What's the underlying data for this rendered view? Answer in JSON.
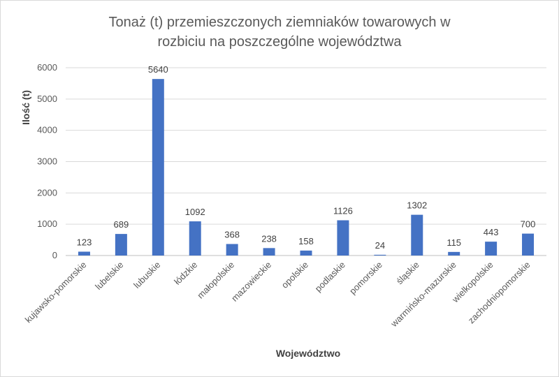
{
  "chart_data": {
    "type": "bar",
    "title_lines": [
      "Tonaż (t) przemieszczonych ziemniaków towarowych w",
      "rozbiciu na poszczególne województwa"
    ],
    "xlabel": "Województwo",
    "ylabel": "Ilość (t)",
    "ylim": [
      0,
      6000
    ],
    "yticks": [
      0,
      1000,
      2000,
      3000,
      4000,
      5000,
      6000
    ],
    "grid": true,
    "bar_color": "#4472C4",
    "categories": [
      "kujawsko-pomorskie",
      "lubelskie",
      "lubuskie",
      "łódzkie",
      "małopolskie",
      "mazowieckie",
      "opolskie",
      "podlaskie",
      "pomorskie",
      "śląskie",
      "warmińsko-mazurskie",
      "wielkopolskie",
      "zachodniopomorskie"
    ],
    "values": [
      123,
      689,
      5640,
      1092,
      368,
      238,
      158,
      1126,
      24,
      1302,
      115,
      443,
      700
    ]
  }
}
